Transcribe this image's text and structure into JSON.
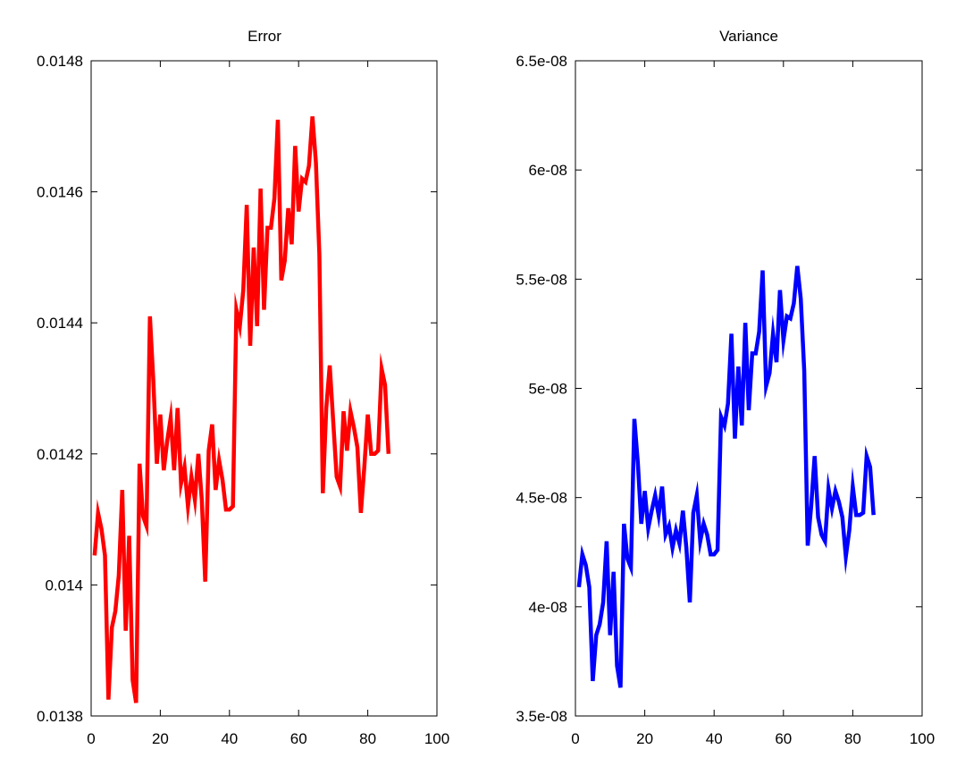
{
  "chart_data": [
    {
      "type": "line",
      "title": "Error",
      "xlabel": "",
      "ylabel": "",
      "xlim": [
        0,
        100
      ],
      "ylim": [
        0.0138,
        0.0148
      ],
      "xticks": [
        0,
        20,
        40,
        60,
        80,
        100
      ],
      "xtick_labels": [
        "0",
        "20",
        "40",
        "60",
        "80",
        "100"
      ],
      "yticks": [
        0.0138,
        0.014,
        0.0142,
        0.0144,
        0.0146,
        0.0148
      ],
      "ytick_labels": [
        "0.0138",
        "0.014",
        "0.0142",
        "0.0144",
        "0.0146",
        "0.0148"
      ],
      "grid": false,
      "series": [
        {
          "color": "#ff0000",
          "x": [
            1,
            2,
            3,
            4,
            5,
            6,
            7,
            8,
            9,
            10,
            11,
            12,
            13,
            14,
            15,
            16,
            17,
            18,
            19,
            20,
            21,
            22,
            23,
            24,
            25,
            26,
            27,
            28,
            29,
            30,
            31,
            32,
            33,
            34,
            35,
            36,
            37,
            38,
            39,
            40,
            41,
            42,
            43,
            44,
            45,
            46,
            47,
            48,
            49,
            50,
            51,
            52,
            53,
            54,
            55,
            56,
            57,
            58,
            59,
            60,
            61,
            62,
            63,
            64,
            65,
            66,
            67,
            68,
            69,
            70,
            71,
            72,
            73,
            74,
            75,
            76,
            77,
            78,
            79,
            80,
            81,
            82,
            83,
            84,
            85,
            86
          ],
          "y": [
            0.014045,
            0.01411,
            0.014085,
            0.014045,
            0.013825,
            0.013935,
            0.01396,
            0.014015,
            0.014145,
            0.01393,
            0.014075,
            0.013855,
            0.01382,
            0.014185,
            0.014105,
            0.01409,
            0.01441,
            0.01431,
            0.014185,
            0.01426,
            0.014175,
            0.01422,
            0.014255,
            0.014175,
            0.01427,
            0.014155,
            0.01418,
            0.01412,
            0.014165,
            0.01413,
            0.0142,
            0.01413,
            0.014005,
            0.014205,
            0.014245,
            0.014145,
            0.01419,
            0.01416,
            0.014115,
            0.014115,
            0.01412,
            0.01442,
            0.014395,
            0.01445,
            0.01458,
            0.014365,
            0.014515,
            0.014395,
            0.014605,
            0.01442,
            0.014545,
            0.014545,
            0.01459,
            0.01471,
            0.014465,
            0.014495,
            0.014575,
            0.01452,
            0.01467,
            0.01457,
            0.01462,
            0.014615,
            0.01464,
            0.014715,
            0.014645,
            0.014505,
            0.01414,
            0.01427,
            0.014335,
            0.01425,
            0.014165,
            0.01415,
            0.014265,
            0.014205,
            0.014265,
            0.01424,
            0.01421,
            0.01411,
            0.01418,
            0.01426,
            0.0142,
            0.0142,
            0.014205,
            0.01433,
            0.014305,
            0.0142
          ]
        }
      ]
    },
    {
      "type": "line",
      "title": "Variance",
      "xlabel": "",
      "ylabel": "",
      "xlim": [
        0,
        100
      ],
      "ylim": [
        3.5e-08,
        6.5e-08
      ],
      "xticks": [
        0,
        20,
        40,
        60,
        80,
        100
      ],
      "xtick_labels": [
        "0",
        "20",
        "40",
        "60",
        "80",
        "100"
      ],
      "yticks": [
        3.5e-08,
        4e-08,
        4.5e-08,
        5e-08,
        5.5e-08,
        6e-08,
        6.5e-08
      ],
      "ytick_labels": [
        "3.5e-08",
        "4e-08",
        "4.5e-08",
        "5e-08",
        "5.5e-08",
        "6e-08",
        "6.5e-08"
      ],
      "grid": false,
      "series": [
        {
          "color": "#0000ff",
          "x": [
            1,
            2,
            3,
            4,
            5,
            6,
            7,
            8,
            9,
            10,
            11,
            12,
            13,
            14,
            15,
            16,
            17,
            18,
            19,
            20,
            21,
            22,
            23,
            24,
            25,
            26,
            27,
            28,
            29,
            30,
            31,
            32,
            33,
            34,
            35,
            36,
            37,
            38,
            39,
            40,
            41,
            42,
            43,
            44,
            45,
            46,
            47,
            48,
            49,
            50,
            51,
            52,
            53,
            54,
            55,
            56,
            57,
            58,
            59,
            60,
            61,
            62,
            63,
            64,
            65,
            66,
            67,
            68,
            69,
            70,
            71,
            72,
            73,
            74,
            75,
            76,
            77,
            78,
            79,
            80,
            81,
            82,
            83,
            84,
            85,
            86
          ],
          "y": [
            4.09e-08,
            4.24e-08,
            4.19e-08,
            4.09e-08,
            3.66e-08,
            3.87e-08,
            3.92e-08,
            4.02e-08,
            4.3e-08,
            3.87e-08,
            4.16e-08,
            3.73e-08,
            3.63e-08,
            4.38e-08,
            4.22e-08,
            4.18e-08,
            4.86e-08,
            4.66e-08,
            4.38e-08,
            4.53e-08,
            4.36e-08,
            4.44e-08,
            4.51e-08,
            4.42e-08,
            4.55e-08,
            4.33e-08,
            4.37e-08,
            4.27e-08,
            4.35e-08,
            4.29e-08,
            4.44e-08,
            4.27e-08,
            4.02e-08,
            4.43e-08,
            4.51e-08,
            4.3e-08,
            4.38e-08,
            4.33e-08,
            4.24e-08,
            4.24e-08,
            4.26e-08,
            4.87e-08,
            4.83e-08,
            4.93e-08,
            5.25e-08,
            4.77e-08,
            5.1e-08,
            4.83e-08,
            5.3e-08,
            4.9e-08,
            5.16e-08,
            5.16e-08,
            5.26e-08,
            5.54e-08,
            5.01e-08,
            5.07e-08,
            5.25e-08,
            5.12e-08,
            5.45e-08,
            5.22e-08,
            5.33e-08,
            5.32e-08,
            5.39e-08,
            5.56e-08,
            5.41e-08,
            5.08e-08,
            4.28e-08,
            4.46e-08,
            4.69e-08,
            4.41e-08,
            4.33e-08,
            4.3e-08,
            4.54e-08,
            4.45e-08,
            4.53e-08,
            4.48e-08,
            4.41e-08,
            4.23e-08,
            4.35e-08,
            4.55e-08,
            4.42e-08,
            4.42e-08,
            4.43e-08,
            4.69e-08,
            4.64e-08,
            4.42e-08
          ]
        }
      ]
    }
  ]
}
